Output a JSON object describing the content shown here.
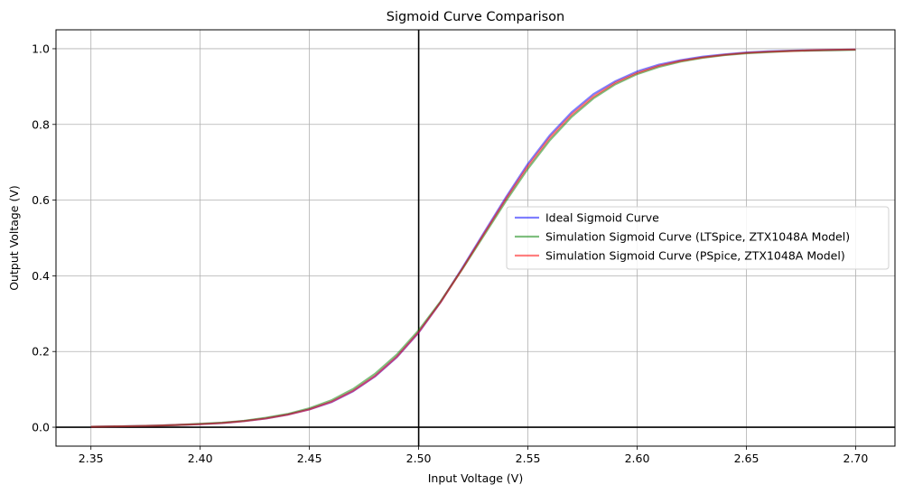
{
  "chart_data": {
    "type": "line",
    "title": "Sigmoid Curve Comparison",
    "xlabel": "Input Voltage (V)",
    "ylabel": "Output Voltage (V)",
    "xlim": [
      2.334,
      2.718
    ],
    "ylim": [
      -0.05,
      1.05
    ],
    "x_ticks": [
      2.35,
      2.4,
      2.45,
      2.5,
      2.55,
      2.6,
      2.65,
      2.7
    ],
    "x_tick_labels": [
      "2.35",
      "2.40",
      "2.45",
      "2.50",
      "2.55",
      "2.60",
      "2.65",
      "2.70"
    ],
    "y_ticks": [
      0.0,
      0.2,
      0.4,
      0.6,
      0.8,
      1.0
    ],
    "y_tick_labels": [
      "0.0",
      "0.2",
      "0.4",
      "0.6",
      "0.8",
      "1.0"
    ],
    "grid": true,
    "reference_lines": {
      "x": 2.5,
      "y": 0.0,
      "color": "#000000"
    },
    "legend_position": "center-right",
    "x": [
      2.35,
      2.36,
      2.37,
      2.38,
      2.39,
      2.4,
      2.41,
      2.42,
      2.43,
      2.44,
      2.45,
      2.46,
      2.47,
      2.48,
      2.49,
      2.5,
      2.51,
      2.52,
      2.53,
      2.54,
      2.55,
      2.56,
      2.57,
      2.58,
      2.59,
      2.6,
      2.61,
      2.62,
      2.63,
      2.64,
      2.65,
      2.66,
      2.67,
      2.68,
      2.69,
      2.7
    ],
    "series": [
      {
        "name": "Ideal Sigmoid Curve",
        "color": "#0000ff",
        "values": [
          0.001,
          0.002,
          0.003,
          0.004,
          0.006,
          0.008,
          0.011,
          0.016,
          0.023,
          0.033,
          0.047,
          0.066,
          0.095,
          0.134,
          0.185,
          0.25,
          0.33,
          0.421,
          0.515,
          0.608,
          0.696,
          0.771,
          0.832,
          0.88,
          0.914,
          0.94,
          0.958,
          0.97,
          0.979,
          0.985,
          0.99,
          0.993,
          0.995,
          0.996,
          0.997,
          0.998
        ]
      },
      {
        "name": "Simulation Sigmoid Curve (LTSpice, ZTX1048A Model)",
        "color": "#008000",
        "values": [
          0.001,
          0.002,
          0.003,
          0.004,
          0.006,
          0.009,
          0.012,
          0.017,
          0.025,
          0.035,
          0.05,
          0.071,
          0.101,
          0.141,
          0.192,
          0.256,
          0.332,
          0.418,
          0.508,
          0.598,
          0.683,
          0.758,
          0.82,
          0.869,
          0.906,
          0.933,
          0.952,
          0.966,
          0.976,
          0.983,
          0.988,
          0.991,
          0.994,
          0.995,
          0.996,
          0.997
        ]
      },
      {
        "name": "Simulation Sigmoid Curve (PSpice, ZTX1048A Model)",
        "color": "#ff0000",
        "values": [
          0.001,
          0.002,
          0.003,
          0.004,
          0.006,
          0.008,
          0.011,
          0.016,
          0.023,
          0.033,
          0.047,
          0.067,
          0.096,
          0.135,
          0.186,
          0.251,
          0.33,
          0.419,
          0.512,
          0.604,
          0.69,
          0.765,
          0.826,
          0.874,
          0.91,
          0.936,
          0.955,
          0.968,
          0.977,
          0.984,
          0.989,
          0.992,
          0.994,
          0.996,
          0.997,
          0.998
        ]
      }
    ]
  }
}
